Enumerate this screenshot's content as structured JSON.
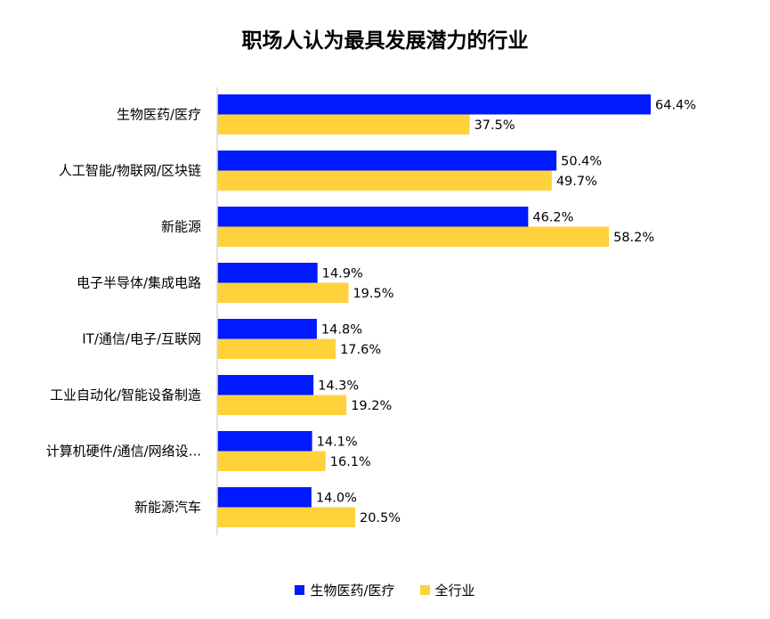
{
  "chart_data": {
    "type": "bar",
    "orientation": "horizontal",
    "title": "职场人认为最具发展潜力的行业",
    "categories": [
      "生物医药/医疗",
      "人工智能/物联网/区块链",
      "新能源",
      "电子半导体/集成电路",
      "IT/通信/电子/互联网",
      "工业自动化/智能设备制造",
      "计算机硬件/通信/网络设...",
      "新能源汽车"
    ],
    "series": [
      {
        "name": "生物医药/医疗",
        "color": "#0019FF",
        "values": [
          64.4,
          50.4,
          46.2,
          14.9,
          14.8,
          14.3,
          14.1,
          14.0
        ],
        "labels": [
          "64.4%",
          "50.4%",
          "46.2%",
          "14.9%",
          "14.8%",
          "14.3%",
          "14.1%",
          "14.0%"
        ]
      },
      {
        "name": "全行业",
        "color": "#FFD23C",
        "values": [
          37.5,
          49.7,
          58.2,
          19.5,
          17.6,
          19.2,
          16.1,
          20.5
        ],
        "labels": [
          "37.5%",
          "49.7%",
          "58.2%",
          "19.5%",
          "17.6%",
          "19.2%",
          "16.1%",
          "20.5%"
        ]
      }
    ],
    "xlim": [
      0,
      70
    ],
    "grid": false,
    "legend_position": "bottom"
  }
}
